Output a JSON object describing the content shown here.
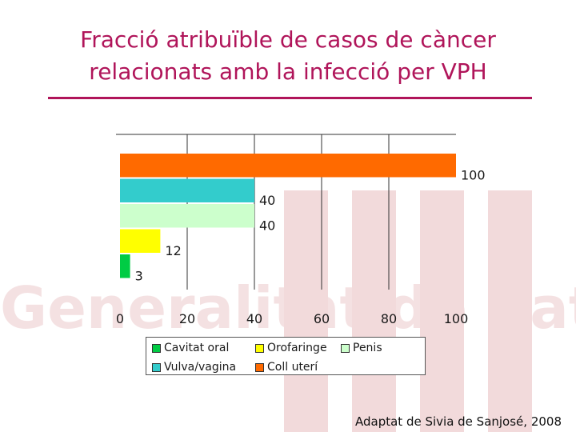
{
  "slide": {
    "title_line1": "Fracció atribuïble  de casos de càncer",
    "title_line2": "relacionats amb la infecció per VPH",
    "source": "Adaptat de Sivia de Sanjosé, 2008",
    "watermark": "Generalitat de Catalunya",
    "watermark_color": "#f2dadb",
    "title_color": "#b0155a"
  },
  "chart_data": {
    "type": "bar",
    "orientation": "horizontal",
    "title": "",
    "xlabel": "",
    "ylabel": "",
    "xlim": [
      0,
      100
    ],
    "x_ticks": [
      "0",
      "20",
      "40",
      "60",
      "80",
      "100"
    ],
    "grid": true,
    "legend_position": "bottom",
    "series": [
      {
        "name": "Coll uterí",
        "value": 100,
        "label": "100",
        "color": "#ff6a00"
      },
      {
        "name": "Vulva/vagina",
        "value": 40,
        "label": "40",
        "color": "#33cccc"
      },
      {
        "name": "Penis",
        "value": 40,
        "label": "40",
        "color": "#ccffcc"
      },
      {
        "name": "Orofaringe",
        "value": 12,
        "label": "12",
        "color": "#ffff00"
      },
      {
        "name": "Cavitat oral",
        "value": 3,
        "label": "3",
        "color": "#00cc44"
      }
    ],
    "legend": [
      {
        "label": "Cavitat oral",
        "color": "#00cc44"
      },
      {
        "label": "Orofaringe",
        "color": "#ffff00"
      },
      {
        "label": "Penis",
        "color": "#ccffcc"
      },
      {
        "label": "Vulva/vagina",
        "color": "#33cccc"
      },
      {
        "label": "Coll uterí",
        "color": "#ff6a00"
      }
    ]
  }
}
